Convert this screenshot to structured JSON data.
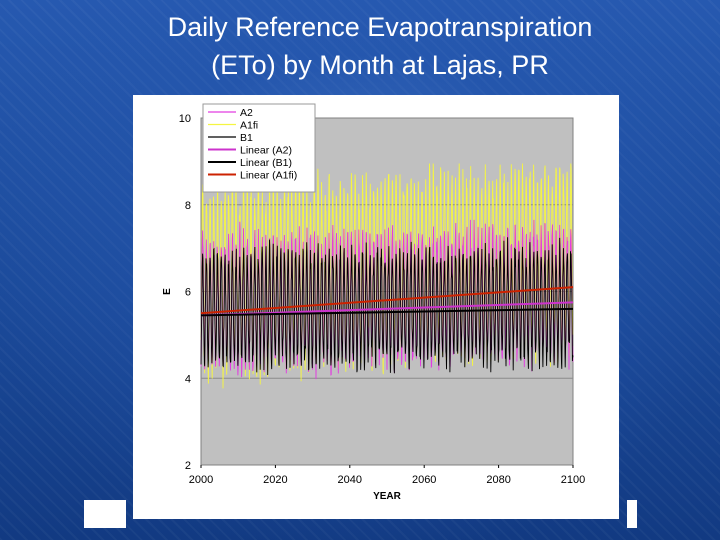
{
  "slide": {
    "title_line1": "Daily Reference Evapotranspiration",
    "title_line2": "(ETo) by Month at Lajas, PR"
  },
  "colors": {
    "background": "#1f4e9c",
    "plot_bg": "#c0c0c0",
    "A2": "#e23ce0",
    "A1fi": "#f5f542",
    "B1": "#000000",
    "linear_A2": "#cc33cc",
    "linear_B1": "#000000",
    "linear_A1fi": "#cc2200"
  },
  "chart_data": {
    "type": "line",
    "xlabel": "YEAR",
    "ylabel": "E",
    "xlim": [
      2000,
      2100
    ],
    "ylim": [
      2,
      10
    ],
    "x_ticks": [
      "2000",
      "2020",
      "2040",
      "2060",
      "2080",
      "2100"
    ],
    "y_ticks": [
      "2",
      "4",
      "6",
      "8",
      "10"
    ],
    "grid": "horizontal",
    "legend_position": "top-left",
    "series": [
      {
        "name": "A2",
        "kind": "monthly",
        "min": 3.9,
        "max": 7.6
      },
      {
        "name": "A1fi",
        "kind": "monthly",
        "min": 3.6,
        "max": 8.9
      },
      {
        "name": "B1",
        "kind": "monthly",
        "min": 4.0,
        "max": 7.2
      },
      {
        "name": "Linear (A2)",
        "kind": "trend",
        "x": [
          2000,
          2100
        ],
        "y": [
          5.45,
          5.75
        ]
      },
      {
        "name": "Linear (B1)",
        "kind": "trend",
        "x": [
          2000,
          2100
        ],
        "y": [
          5.45,
          5.6
        ]
      },
      {
        "name": "Linear (A1fi)",
        "kind": "trend",
        "x": [
          2000,
          2100
        ],
        "y": [
          5.5,
          6.1
        ]
      }
    ]
  }
}
